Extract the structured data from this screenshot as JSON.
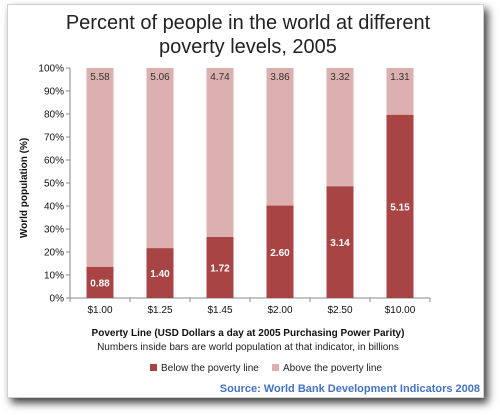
{
  "chart_data": {
    "type": "bar",
    "stacked": true,
    "title": "Percent of people in the world at different poverty levels, 2005",
    "title_lines": [
      "Percent of people in the world at different",
      "poverty levels, 2005"
    ],
    "xlabel": "Poverty Line (USD Dollars a day at 2005 Purchasing Power Parity)",
    "ylabel": "World population (%)",
    "ylim": [
      0,
      100
    ],
    "yticks": [
      "0%",
      "10%",
      "20%",
      "30%",
      "40%",
      "50%",
      "60%",
      "70%",
      "80%",
      "90%",
      "100%"
    ],
    "categories": [
      "$1.00",
      "$1.25",
      "$1.45",
      "$2.00",
      "$2.50",
      "$10.00"
    ],
    "series": [
      {
        "name": "Below the poverty line",
        "values": [
          13.6,
          21.7,
          26.6,
          40.2,
          48.6,
          79.7
        ],
        "labels": [
          "0.88",
          "1.40",
          "1.72",
          "2.60",
          "3.14",
          "5.15"
        ],
        "color": "#a84444"
      },
      {
        "name": "Above the poverty line",
        "values": [
          86.4,
          78.3,
          73.4,
          59.8,
          51.4,
          20.3
        ],
        "labels": [
          "5.58",
          "5.06",
          "4.74",
          "3.86",
          "3.32",
          "1.31"
        ],
        "color": "#ddb0b0"
      }
    ],
    "note": "Numbers inside bars are world population at that indicator, in billions",
    "source": "Source: World Bank Development Indicators 2008",
    "legend_position": "bottom",
    "grid": false
  }
}
